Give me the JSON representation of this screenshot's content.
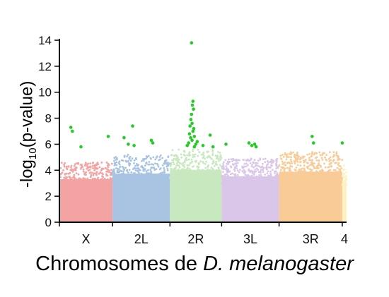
{
  "chart_data": {
    "type": "scatter",
    "subtype": "manhattan",
    "ylabel_prefix": "-log",
    "ylabel_sub": "10",
    "ylabel_suffix": "(p-value)",
    "xlabel_prefix": "Chromosomes de ",
    "xlabel_italic": "D. melanogaster",
    "ylim": [
      0,
      14
    ],
    "yticks": [
      0,
      2,
      4,
      6,
      8,
      10,
      12,
      14
    ],
    "grid": false,
    "legend": "none",
    "significance_color": "#22cc22",
    "chromosomes": [
      {
        "name": "X",
        "color": "#f4a3a3",
        "extent": [
          0.0,
          0.185
        ],
        "typical_max": 4.6
      },
      {
        "name": "2L",
        "color": "#a9c4e2",
        "extent": [
          0.185,
          0.385
        ],
        "typical_max": 5.2
      },
      {
        "name": "2R",
        "color": "#c8e8c0",
        "extent": [
          0.385,
          0.565
        ],
        "typical_max": 5.6
      },
      {
        "name": "3L",
        "color": "#d9c6e8",
        "extent": [
          0.565,
          0.765
        ],
        "typical_max": 4.9
      },
      {
        "name": "3R",
        "color": "#f8cb97",
        "extent": [
          0.765,
          0.985
        ],
        "typical_max": 5.4
      },
      {
        "name": "4",
        "color": "#fff2c2",
        "extent": [
          0.985,
          1.0
        ],
        "typical_max": 4.4
      }
    ],
    "significant_points": [
      {
        "chrom": "X",
        "x": 0.04,
        "y": 7.3
      },
      {
        "chrom": "X",
        "x": 0.045,
        "y": 7.0
      },
      {
        "chrom": "X",
        "x": 0.075,
        "y": 5.8
      },
      {
        "chrom": "X",
        "x": 0.17,
        "y": 6.6
      },
      {
        "chrom": "2L",
        "x": 0.225,
        "y": 6.5
      },
      {
        "chrom": "2L",
        "x": 0.24,
        "y": 6.0
      },
      {
        "chrom": "2L",
        "x": 0.255,
        "y": 7.4
      },
      {
        "chrom": "2L",
        "x": 0.26,
        "y": 5.9
      },
      {
        "chrom": "2L",
        "x": 0.32,
        "y": 6.3
      },
      {
        "chrom": "2L",
        "x": 0.325,
        "y": 6.1
      },
      {
        "chrom": "2R",
        "x": 0.46,
        "y": 13.8
      },
      {
        "chrom": "2R",
        "x": 0.465,
        "y": 9.3
      },
      {
        "chrom": "2R",
        "x": 0.463,
        "y": 9.0
      },
      {
        "chrom": "2R",
        "x": 0.467,
        "y": 8.7
      },
      {
        "chrom": "2R",
        "x": 0.46,
        "y": 8.3
      },
      {
        "chrom": "2R",
        "x": 0.458,
        "y": 7.9
      },
      {
        "chrom": "2R",
        "x": 0.462,
        "y": 7.6
      },
      {
        "chrom": "2R",
        "x": 0.455,
        "y": 7.4
      },
      {
        "chrom": "2R",
        "x": 0.468,
        "y": 7.2
      },
      {
        "chrom": "2R",
        "x": 0.465,
        "y": 7.0
      },
      {
        "chrom": "2R",
        "x": 0.453,
        "y": 6.8
      },
      {
        "chrom": "2R",
        "x": 0.47,
        "y": 6.6
      },
      {
        "chrom": "2R",
        "x": 0.457,
        "y": 6.5
      },
      {
        "chrom": "2R",
        "x": 0.462,
        "y": 6.3
      },
      {
        "chrom": "2R",
        "x": 0.45,
        "y": 6.1
      },
      {
        "chrom": "2R",
        "x": 0.475,
        "y": 6.0
      },
      {
        "chrom": "2R",
        "x": 0.445,
        "y": 5.9
      },
      {
        "chrom": "2R",
        "x": 0.48,
        "y": 6.2
      },
      {
        "chrom": "2R",
        "x": 0.47,
        "y": 5.8
      },
      {
        "chrom": "2R",
        "x": 0.5,
        "y": 5.9
      },
      {
        "chrom": "2R",
        "x": 0.525,
        "y": 6.7
      },
      {
        "chrom": "2R",
        "x": 0.535,
        "y": 5.8
      },
      {
        "chrom": "3L",
        "x": 0.58,
        "y": 6.0
      },
      {
        "chrom": "3L",
        "x": 0.66,
        "y": 6.1
      },
      {
        "chrom": "3L",
        "x": 0.67,
        "y": 5.9
      },
      {
        "chrom": "3L",
        "x": 0.68,
        "y": 6.0
      },
      {
        "chrom": "3L",
        "x": 0.685,
        "y": 5.8
      },
      {
        "chrom": "3R",
        "x": 0.88,
        "y": 6.6
      },
      {
        "chrom": "3R",
        "x": 0.885,
        "y": 6.1
      },
      {
        "chrom": "3R",
        "x": 0.985,
        "y": 6.1
      }
    ]
  }
}
